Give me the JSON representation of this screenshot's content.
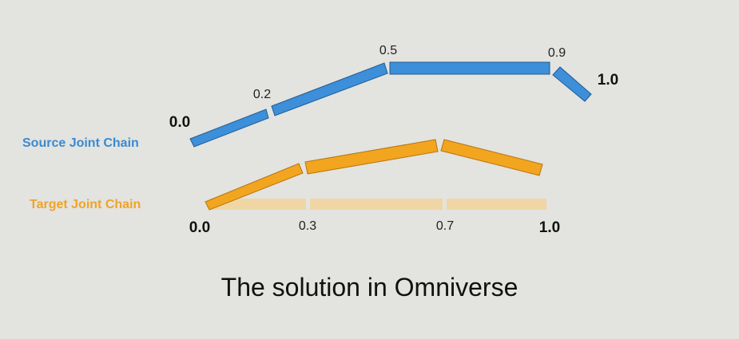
{
  "colors": {
    "background": "#e3e3e0",
    "source_chain": "#3c8fd8",
    "source_outline": "#1e5c94",
    "target_chain": "#f2a51e",
    "target_outline": "#b8750c",
    "target_rest": "#f0d6a4",
    "source_label": "#3b8ad0",
    "target_label": "#f0a426"
  },
  "source_chain": {
    "label": "Source Joint Chain",
    "joint_labels": [
      "0.0",
      "0.2",
      "0.5",
      "0.9",
      "1.0"
    ]
  },
  "target_chain": {
    "label": "Target Joint Chain",
    "joint_labels": [
      "0.0",
      "0.3",
      "0.7",
      "1.0"
    ]
  },
  "caption": "The solution in Omniverse"
}
